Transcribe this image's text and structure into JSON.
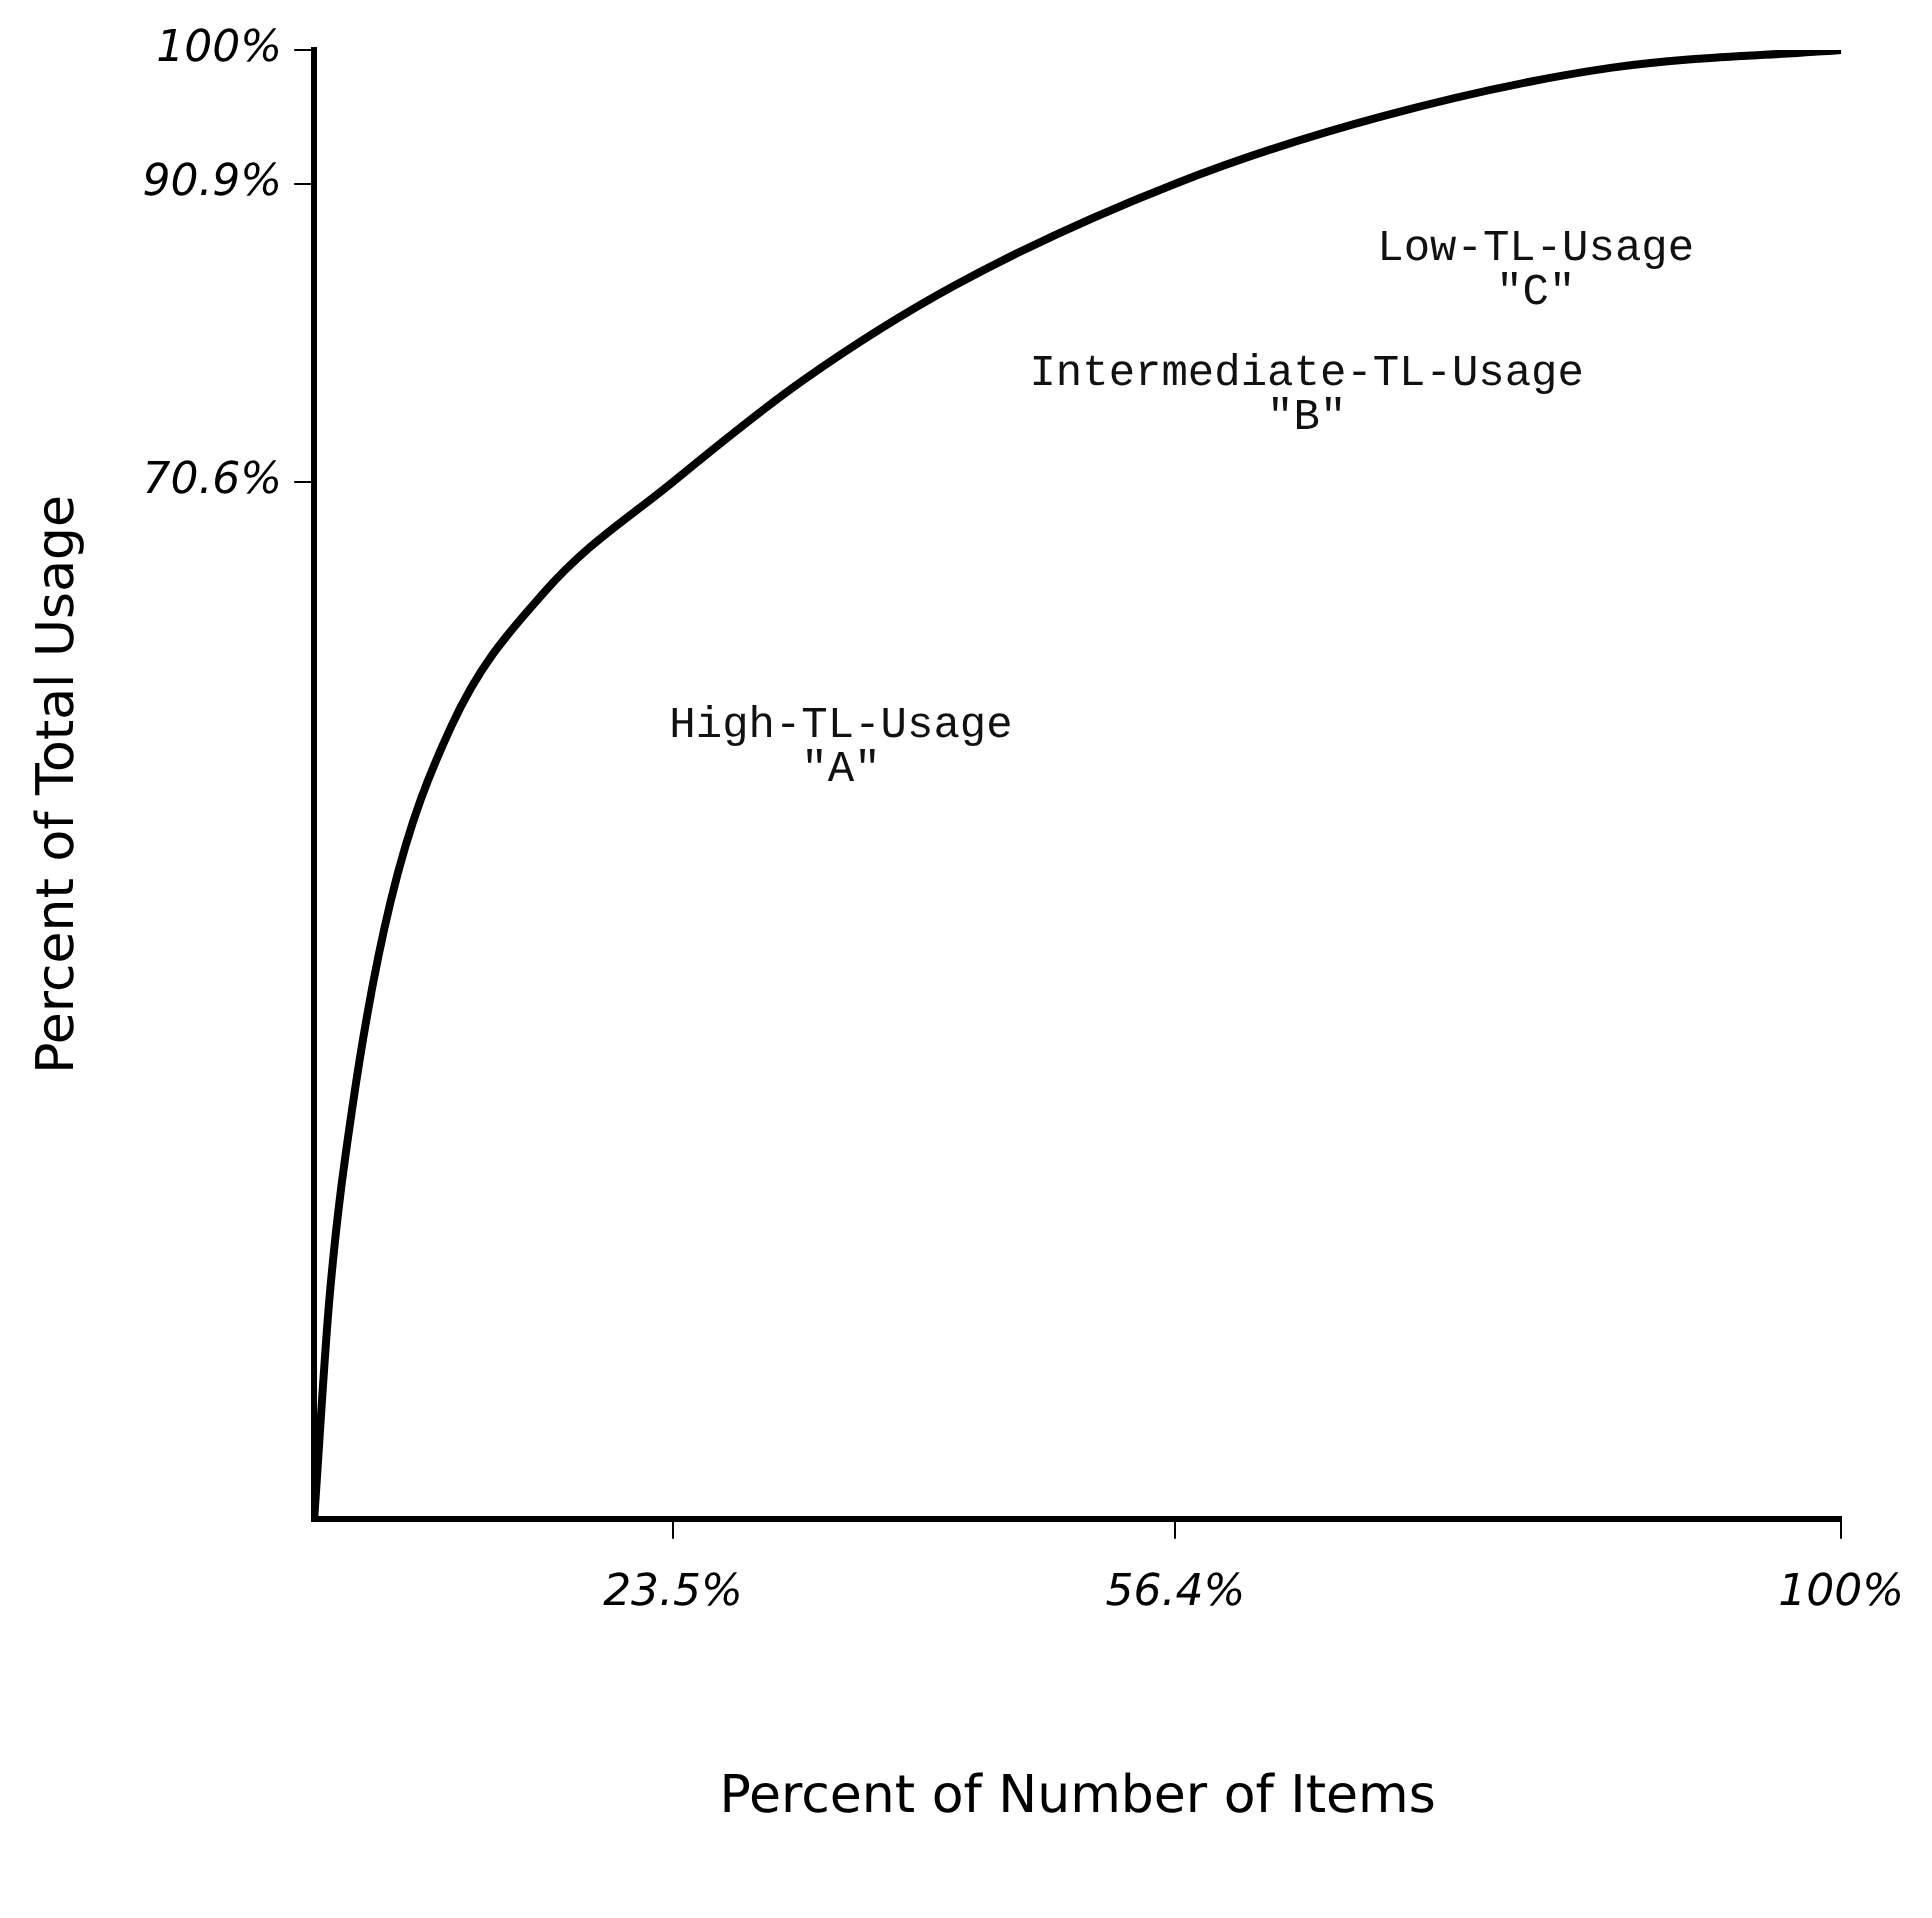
{
  "chart_data": {
    "type": "line",
    "xlabel": "Percent of Number of Items",
    "ylabel": "Percent of Total Usage",
    "x": [
      0,
      1,
      2.5,
      5,
      9,
      15,
      23.5,
      32,
      42,
      56.4,
      70,
      85,
      100
    ],
    "series": [
      {
        "color": "#000000",
        "values": [
          0,
          15,
          28,
          42,
          54,
          63,
          70.6,
          77.5,
          84,
          90.9,
          95.5,
          98.8,
          100
        ]
      }
    ],
    "xlim": [
      0,
      100
    ],
    "ylim": [
      0,
      100
    ],
    "xticks": [
      {
        "value": 23.5,
        "label": "23.5%"
      },
      {
        "value": 56.4,
        "label": "56.4%"
      },
      {
        "value": 100,
        "label": "100%"
      }
    ],
    "yticks": [
      {
        "value": 70.6,
        "label": "70.6%"
      },
      {
        "value": 90.9,
        "label": "90.9%"
      },
      {
        "value": 100,
        "label": "100%"
      }
    ],
    "annotations": [
      "High-TL-Usage\n\"A\"",
      "Intermediate-TL-Usage\n\"B\"",
      "Low-TL-Usage\n\"C\""
    ],
    "grid": false,
    "legend": false,
    "marker": "none",
    "line_style": "solid"
  }
}
